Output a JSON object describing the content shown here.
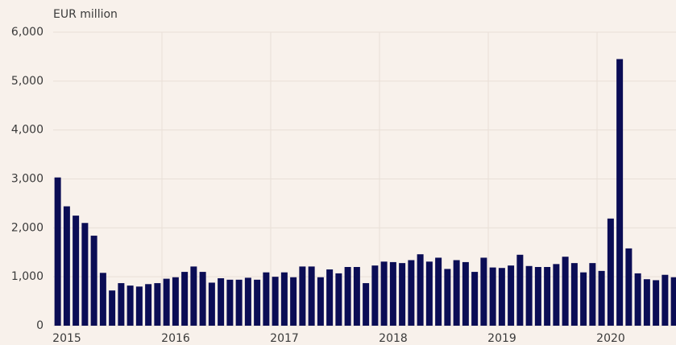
{
  "chart_data": {
    "type": "bar",
    "y_label": "EUR million",
    "color": "#0b0d55",
    "categories": [
      "2015",
      null,
      null,
      null,
      null,
      null,
      null,
      null,
      null,
      null,
      null,
      null,
      "2016",
      null,
      null,
      null,
      null,
      null,
      null,
      null,
      null,
      null,
      null,
      null,
      "2017",
      null,
      null,
      null,
      null,
      null,
      null,
      null,
      null,
      null,
      null,
      null,
      "2018",
      null,
      null,
      null,
      null,
      null,
      null,
      null,
      null,
      null,
      null,
      null,
      "2019",
      null,
      null,
      null,
      null,
      null,
      null,
      null,
      null,
      null,
      null,
      null,
      "2020",
      null,
      null,
      null,
      null,
      null,
      null,
      null,
      null
    ],
    "values": [
      3030,
      2440,
      2250,
      2100,
      1840,
      1080,
      720,
      870,
      820,
      800,
      850,
      870,
      960,
      990,
      1100,
      1210,
      1100,
      880,
      970,
      940,
      940,
      980,
      940,
      1090,
      1000,
      1090,
      990,
      1210,
      1210,
      990,
      1150,
      1070,
      1200,
      1200,
      870,
      1230,
      1310,
      1300,
      1280,
      1340,
      1460,
      1310,
      1390,
      1160,
      1340,
      1300,
      1100,
      1390,
      1190,
      1180,
      1230,
      1450,
      1220,
      1200,
      1200,
      1260,
      1410,
      1280,
      1090,
      1280,
      1120,
      2190,
      5450,
      1580,
      1070,
      950,
      930,
      1040,
      990
    ],
    "ylim": [
      0,
      6000
    ],
    "yticks": [
      0,
      {
        "value": 1000,
        "label": "1,000"
      },
      {
        "value": 2000,
        "label": "2,000"
      },
      {
        "value": 3000,
        "label": "3,000"
      },
      {
        "value": 4000,
        "label": "4,000"
      },
      {
        "value": 5000,
        "label": "5,000"
      },
      {
        "value": 6000,
        "label": "6,000"
      }
    ],
    "grid": true
  }
}
